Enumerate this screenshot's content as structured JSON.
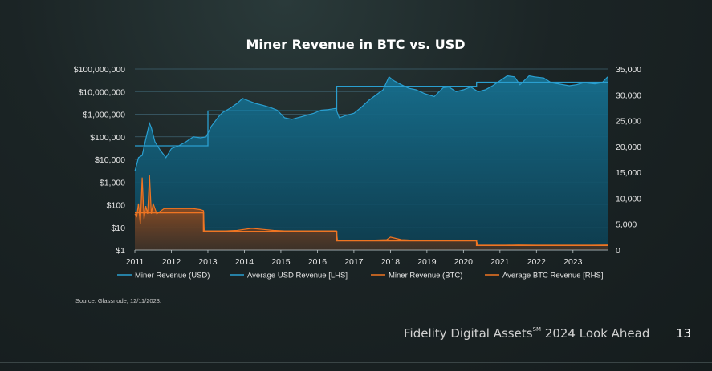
{
  "chart_data": {
    "type": "area",
    "title": "Miner Revenue in BTC vs. USD",
    "x_ticks": [
      "2011",
      "2012",
      "2013",
      "2014",
      "2015",
      "2016",
      "2017",
      "2018",
      "2019",
      "2020",
      "2021",
      "2022",
      "2023"
    ],
    "x_range": [
      2011.0,
      2023.95
    ],
    "y_left": {
      "scale": "log",
      "ylim": [
        1,
        100000000
      ],
      "ticks": [
        "$100,000,000",
        "$10,000,000",
        "$1,000,000",
        "$100,000",
        "$10,000",
        "$1,000",
        "$100",
        "$10",
        "$1"
      ]
    },
    "y_right": {
      "scale": "linear",
      "ylim": [
        0,
        35000
      ],
      "ticks": [
        "35,000",
        "30,000",
        "25,000",
        "20,000",
        "15,000",
        "10,000",
        "5,000",
        "0"
      ]
    },
    "legend": [
      "Miner Revenue (USD)",
      "Average USD Revenue [LHS]",
      "Miner Revenue (BTC)",
      "Average BTC Revenue [RHS]"
    ],
    "legend_position": "bottom",
    "colors": {
      "usd_line": "#2a9fd0",
      "usd_fill": "#0f5770",
      "btc_line": "#f07522",
      "btc_fill": "#7a3a14",
      "avg_usd": "#2a9fd0",
      "avg_btc": "#f07522",
      "grid": "#3e6270"
    },
    "series": [
      {
        "name": "Miner Revenue (USD)",
        "axis": "left",
        "x": [
          2011.0,
          2011.1,
          2011.2,
          2011.3,
          2011.4,
          2011.45,
          2011.55,
          2011.7,
          2011.85,
          2012.0,
          2012.2,
          2012.4,
          2012.6,
          2012.8,
          2012.95,
          2013.1,
          2013.3,
          2013.4,
          2013.6,
          2013.8,
          2013.95,
          2014.1,
          2014.3,
          2014.5,
          2014.7,
          2014.9,
          2015.1,
          2015.3,
          2015.6,
          2015.9,
          2016.1,
          2016.3,
          2016.5,
          2016.6,
          2016.8,
          2017.0,
          2017.2,
          2017.4,
          2017.6,
          2017.8,
          2017.96,
          2018.1,
          2018.3,
          2018.5,
          2018.7,
          2018.95,
          2019.2,
          2019.45,
          2019.6,
          2019.8,
          2020.0,
          2020.2,
          2020.4,
          2020.6,
          2020.8,
          2021.0,
          2021.2,
          2021.4,
          2021.55,
          2021.8,
          2021.95,
          2022.2,
          2022.4,
          2022.6,
          2022.9,
          2023.1,
          2023.3,
          2023.6,
          2023.8,
          2023.95
        ],
        "values": [
          3000,
          12000,
          15000,
          80000,
          400000,
          250000,
          60000,
          25000,
          12000,
          30000,
          40000,
          60000,
          100000,
          90000,
          100000,
          300000,
          800000,
          1200000,
          1800000,
          3000000,
          5000000,
          4000000,
          3000000,
          2500000,
          2000000,
          1500000,
          700000,
          600000,
          800000,
          1100000,
          1500000,
          1600000,
          1800000,
          700000,
          900000,
          1100000,
          2000000,
          4000000,
          7000000,
          12000000,
          45000000,
          30000000,
          20000000,
          14000000,
          12000000,
          8000000,
          6000000,
          15000000,
          16000000,
          10000000,
          12000000,
          16000000,
          10000000,
          12000000,
          18000000,
          30000000,
          50000000,
          45000000,
          20000000,
          50000000,
          45000000,
          40000000,
          25000000,
          22000000,
          18000000,
          20000000,
          25000000,
          22000000,
          25000000,
          45000000
        ]
      },
      {
        "name": "Average USD Revenue [LHS]",
        "axis": "left",
        "x": [
          2011.0,
          2012.88,
          2012.88,
          2013.0,
          2013.0,
          2016.53,
          2016.53,
          2020.36,
          2020.36,
          2023.95
        ],
        "values": [
          40000,
          40000,
          40000,
          40000,
          1400000,
          1400000,
          17000000,
          17000000,
          26000000,
          26000000
        ]
      },
      {
        "name": "Miner Revenue (BTC)",
        "axis": "right",
        "x": [
          2011.0,
          2011.05,
          2011.1,
          2011.15,
          2011.2,
          2011.25,
          2011.3,
          2011.35,
          2011.4,
          2011.45,
          2011.5,
          2011.6,
          2011.8,
          2012.0,
          2012.2,
          2012.4,
          2012.6,
          2012.8,
          2012.88,
          2012.9,
          2013.2,
          2013.5,
          2013.8,
          2014.0,
          2014.2,
          2014.5,
          2014.8,
          2015.1,
          2015.5,
          2015.9,
          2016.2,
          2016.52,
          2016.55,
          2017.0,
          2017.5,
          2017.9,
          2018.0,
          2018.3,
          2018.6,
          2019.0,
          2019.5,
          2020.0,
          2020.35,
          2020.4,
          2021.0,
          2021.5,
          2022.0,
          2022.5,
          2023.0,
          2023.5,
          2023.95
        ],
        "values": [
          7000,
          6500,
          9000,
          5000,
          14000,
          6000,
          8500,
          7000,
          14500,
          7000,
          9000,
          7000,
          8000,
          8000,
          8000,
          8000,
          8000,
          7800,
          7600,
          3700,
          3700,
          3700,
          3800,
          4000,
          4200,
          4000,
          3800,
          3700,
          3700,
          3700,
          3700,
          3700,
          1900,
          1900,
          1900,
          2000,
          2500,
          2000,
          1900,
          1850,
          1850,
          1850,
          1850,
          900,
          900,
          950,
          920,
          900,
          900,
          920,
          950
        ]
      },
      {
        "name": "Average BTC Revenue [RHS]",
        "axis": "right",
        "x": [
          2011.0,
          2012.88,
          2012.88,
          2016.53,
          2016.53,
          2020.36,
          2020.36,
          2023.95
        ],
        "values": [
          7200,
          7200,
          3600,
          3600,
          1800,
          1800,
          900,
          900
        ]
      }
    ]
  },
  "source": "Source: Glassnode, 12/11/2023.",
  "footer": {
    "brand": "Fidelity Digital Assets",
    "mark": "SM",
    "suffix": " 2024 Look Ahead",
    "page": "13"
  }
}
